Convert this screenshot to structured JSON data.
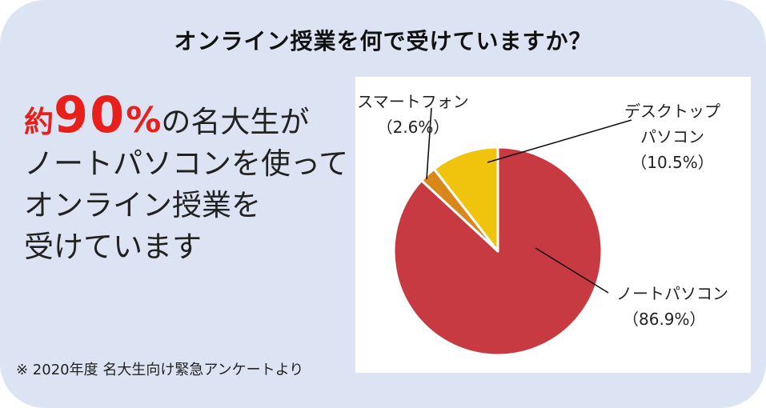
{
  "title": "オンライン授業を何で受けていますか？",
  "headline": {
    "prefix": "約",
    "number": "90",
    "percent": "%",
    "line1_rest": "の名大生が",
    "line2": "ノートパソコンを使って",
    "line3": "オンライン授業を",
    "line4": "受けています"
  },
  "source": "※ 2020年度 名大生向け緊急アンケートより",
  "colors": {
    "accent": "#e8201b",
    "background": "#dce4f3"
  },
  "chart_data": {
    "type": "pie",
    "slices": [
      {
        "label_lines": [
          "ノートパソコン"
        ],
        "pct_label": "（86.9%）",
        "value": 86.9,
        "color": "#c83a41"
      },
      {
        "label_lines": [
          "スマートフォン"
        ],
        "pct_label": "（2.6%）",
        "value": 2.6,
        "color": "#d9861a"
      },
      {
        "label_lines": [
          "デスクトップ",
          "パソコン"
        ],
        "pct_label": "（10.5%）",
        "value": 10.5,
        "color": "#f0c30c"
      }
    ]
  }
}
